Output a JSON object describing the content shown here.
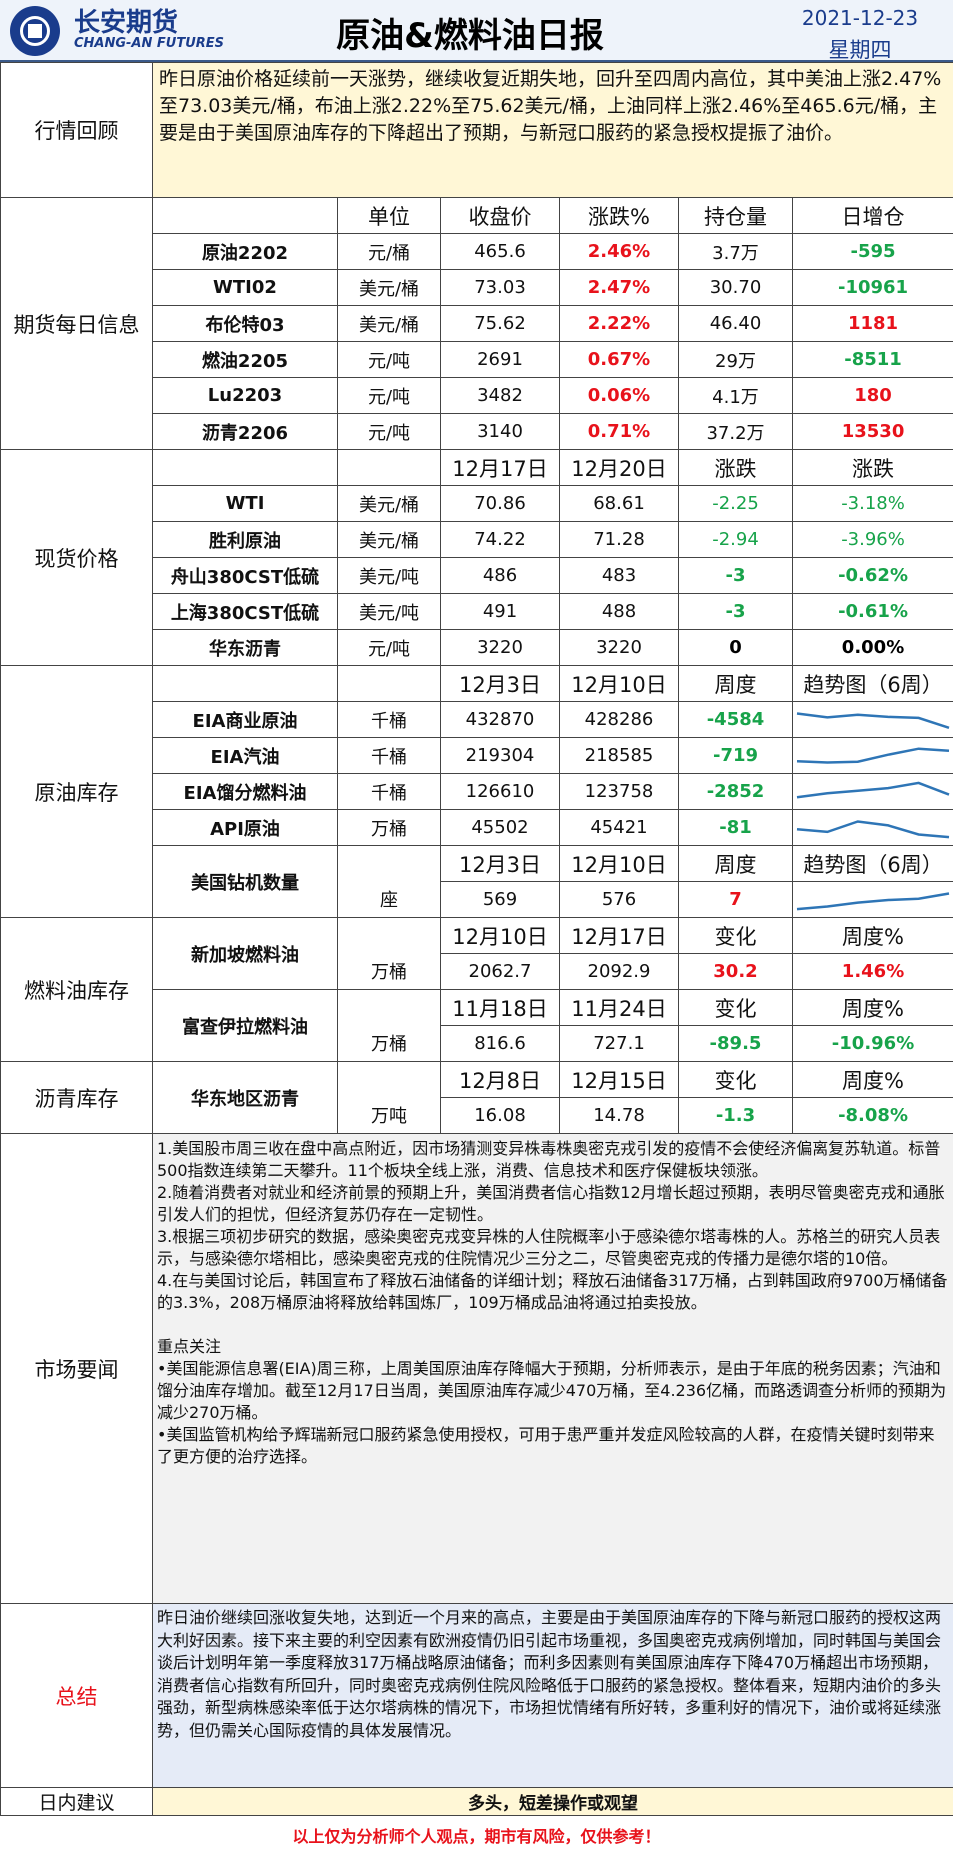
{
  "header": {
    "company_cn": "长安期货",
    "company_en": "CHANG-AN FUTURES",
    "title": "原油&燃料油日报",
    "date": "2021-12-23",
    "weekday": "星期四"
  },
  "review": {
    "label": "行情回顾",
    "text": "昨日原油价格延续前一天涨势，继续收复近期失地，回升至四周内高位，其中美油上涨2.47%至73.03美元/桶，布油上涨2.22%至75.62美元/桶，上油同样上涨2.46%至465.6元/桶，主要是由于美国原油库存的下降超出了预期，与新冠口服药的紧急授权提振了油价。"
  },
  "futures": {
    "label": "期货每日信息",
    "headers": [
      "单位",
      "收盘价",
      "涨跌%",
      "持仓量",
      "日增仓"
    ],
    "rows": [
      {
        "name": "原油2202",
        "unit": "元/桶",
        "close": "465.6",
        "change": "2.46%",
        "oi": "3.7万",
        "oi_change": "-595",
        "oi_color": "green"
      },
      {
        "name": "WTI02",
        "unit": "美元/桶",
        "close": "73.03",
        "change": "2.47%",
        "oi": "30.70",
        "oi_change": "-10961",
        "oi_color": "green"
      },
      {
        "name": "布伦特03",
        "unit": "美元/桶",
        "close": "75.62",
        "change": "2.22%",
        "oi": "46.40",
        "oi_change": "1181",
        "oi_color": "red"
      },
      {
        "name": "燃油2205",
        "unit": "元/吨",
        "close": "2691",
        "change": "0.67%",
        "oi": "29万",
        "oi_change": "-8511",
        "oi_color": "green"
      },
      {
        "name": "Lu2203",
        "unit": "元/吨",
        "close": "3482",
        "change": "0.06%",
        "oi": "4.1万",
        "oi_change": "180",
        "oi_color": "red"
      },
      {
        "name": "沥青2206",
        "unit": "元/吨",
        "close": "3140",
        "change": "0.71%",
        "oi": "37.2万",
        "oi_change": "13530",
        "oi_color": "red"
      }
    ]
  },
  "spot": {
    "label": "现货价格",
    "headers": [
      "12月17日",
      "12月20日",
      "涨跌",
      "涨跌"
    ],
    "rows": [
      {
        "name": "WTI",
        "unit": "美元/桶",
        "d1": "70.86",
        "d2": "68.61",
        "chg": "-2.25",
        "pct": "-3.18%",
        "color": "green"
      },
      {
        "name": "胜利原油",
        "unit": "美元/桶",
        "d1": "74.22",
        "d2": "71.28",
        "chg": "-2.94",
        "pct": "-3.96%",
        "color": "green"
      },
      {
        "name": "舟山380CST低硫",
        "unit": "美元/吨",
        "d1": "486",
        "d2": "483",
        "chg": "-3",
        "pct": "-0.62%",
        "color": "green"
      },
      {
        "name": "上海380CST低硫",
        "unit": "美元/吨",
        "d1": "491",
        "d2": "488",
        "chg": "-3",
        "pct": "-0.61%",
        "color": "green"
      },
      {
        "name": "华东沥青",
        "unit": "元/吨",
        "d1": "3220",
        "d2": "3220",
        "chg": "0",
        "pct": "0.00%",
        "color": "black"
      }
    ]
  },
  "crude_inv": {
    "label": "原油库存",
    "headers": [
      "12月3日",
      "12月10日",
      "周度",
      "趋势图（6周）"
    ],
    "rows": [
      {
        "name": "EIA商业原油",
        "unit": "千桶",
        "d1": "432870",
        "d2": "428286",
        "chg": "-4584",
        "color": "green",
        "trend": [
          0.75,
          0.6,
          0.7,
          0.62,
          0.58,
          0.2
        ]
      },
      {
        "name": "EIA汽油",
        "unit": "千桶",
        "d1": "219304",
        "d2": "218585",
        "chg": "-719",
        "color": "green",
        "trend": [
          0.3,
          0.25,
          0.28,
          0.55,
          0.78,
          0.7
        ]
      },
      {
        "name": "EIA馏分燃料油",
        "unit": "千桶",
        "d1": "126610",
        "d2": "123758",
        "chg": "-2852",
        "color": "green",
        "trend": [
          0.3,
          0.45,
          0.55,
          0.65,
          0.85,
          0.4
        ]
      },
      {
        "name": "API原油",
        "unit": "万桶",
        "d1": "45502",
        "d2": "45421",
        "chg": "-81",
        "color": "green",
        "trend": [
          0.45,
          0.35,
          0.75,
          0.6,
          0.25,
          0.15
        ]
      }
    ],
    "rig": {
      "name": "美国钻机数量",
      "headers": [
        "12月3日",
        "12月10日",
        "周度",
        "趋势图（6周）"
      ],
      "unit": "座",
      "d1": "569",
      "d2": "576",
      "chg": "7",
      "color": "red",
      "trend": [
        0.15,
        0.25,
        0.4,
        0.5,
        0.55,
        0.75
      ]
    }
  },
  "fuel_inv": {
    "label": "燃料油库存",
    "groups": [
      {
        "name": "新加坡燃料油",
        "headers": [
          "12月10日",
          "12月17日",
          "变化",
          "周度%"
        ],
        "unit": "万桶",
        "d1": "2062.7",
        "d2": "2092.9",
        "chg": "30.2",
        "pct": "1.46%",
        "color": "red"
      },
      {
        "name": "富查伊拉燃料油",
        "headers": [
          "11月18日",
          "11月24日",
          "变化",
          "周度%"
        ],
        "unit": "万桶",
        "d1": "816.6",
        "d2": "727.1",
        "chg": "-89.5",
        "pct": "-10.96%",
        "color": "green"
      }
    ]
  },
  "asphalt_inv": {
    "label": "沥青库存",
    "name": "华东地区沥青",
    "headers": [
      "12月8日",
      "12月15日",
      "变化",
      "周度%"
    ],
    "unit": "万吨",
    "d1": "16.08",
    "d2": "14.78",
    "chg": "-1.3",
    "pct": "-8.08%",
    "color": "green"
  },
  "news": {
    "label": "市场要闻",
    "items": [
      "1.美国股市周三收在盘中高点附近，因市场猜测变异株毒株奥密克戎引发的疫情不会使经济偏离复苏轨道。标普500指数连续第二天攀升。11个板块全线上涨，消费、信息技术和医疗保健板块领涨。",
      "2.随着消费者对就业和经济前景的预期上升，美国消费者信心指数12月增长超过预期，表明尽管奥密克戎和通胀引发人们的担忧，但经济复苏仍存在一定韧性。",
      "3.根据三项初步研究的数据，感染奥密克戎变异株的人住院概率小于感染德尔塔毒株的人。苏格兰的研究人员表示，与感染德尔塔相比，感染奥密克戎的住院情况少三分之二，尽管奥密克戎的传播力是德尔塔的10倍。",
      "4.在与美国讨论后，韩国宣布了释放石油储备的详细计划；释放石油储备317万桶，占到韩国政府9700万桶储备的3.3%，208万桶原油将释放给韩国炼厂，109万桶成品油将通过拍卖投放。"
    ],
    "focus_title": "重点关注",
    "focus": [
      "•美国能源信息署(EIA)周三称，上周美国原油库存降幅大于预期，分析师表示，是由于年底的税务因素；汽油和馏分油库存增加。截至12月17日当周，美国原油库存减少470万桶，至4.236亿桶，而路透调查分析师的预期为减少270万桶。",
      "•美国监管机构给予辉瑞新冠口服药紧急使用授权，可用于患严重并发症风险较高的人群，在疫情关键时刻带来了更方便的治疗选择。"
    ]
  },
  "summary": {
    "label": "总结",
    "text": "昨日油价继续回涨收复失地，达到近一个月来的高点，主要是由于美国原油库存的下降与新冠口服药的授权这两大利好因素。接下来主要的利空因素有欧洲疫情仍旧引起市场重视，多国奥密克戎病例增加，同时韩国与美国会谈后计划明年第一季度释放317万桶战略原油储备；而利多因素则有美国原油库存下降470万桶超出市场预期，消费者信心指数有所回升，同时奥密克戎病例住院风险略低于口服药的紧急授权。整体看来，短期内油价的多头强劲，新型病株感染率低于达尔塔病株的情况下，市场担忧情绪有所好转，多重利好的情况下，油价或将延续涨势，但仍需关心国际疫情的具体发展情况。"
  },
  "advice": {
    "label": "日内建议",
    "text": "多头，短差操作或观望"
  },
  "disclaimer": "以上仅为分析师个人观点，期市有风险，仅供参考！",
  "colors": {
    "red": "#e8121b",
    "green": "#17a34a",
    "brand": "#1a3c8c",
    "spark": "#2e75b6"
  }
}
